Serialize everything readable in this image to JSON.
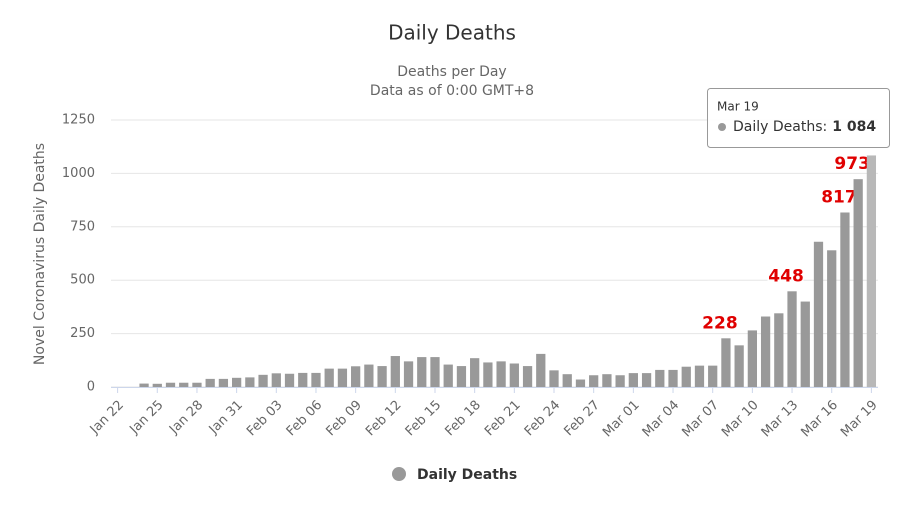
{
  "chart_data": {
    "type": "bar",
    "title": "Daily Deaths",
    "subtitle": [
      "Deaths per Day",
      "Data as of 0:00 GMT+8"
    ],
    "y_label": "Novel Coronavirus Daily Deaths",
    "categories": [
      "Jan 22",
      null,
      null,
      "Jan 25",
      null,
      null,
      "Jan 28",
      null,
      null,
      "Jan 31",
      null,
      null,
      "Feb 03",
      null,
      null,
      "Feb 06",
      null,
      null,
      "Feb 09",
      null,
      null,
      "Feb 12",
      null,
      null,
      "Feb 15",
      null,
      null,
      "Feb 18",
      null,
      null,
      "Feb 21",
      null,
      null,
      "Feb 24",
      null,
      null,
      "Feb 27",
      null,
      null,
      "Mar 01",
      null,
      null,
      "Mar 04",
      null,
      null,
      "Mar 07",
      null,
      null,
      "Mar 10",
      null,
      null,
      "Mar 13",
      null,
      null,
      "Mar 16",
      null,
      null,
      "Mar 19"
    ],
    "series": [
      {
        "name": "Daily Deaths",
        "color": "#999999",
        "hover_color": "#b8b8b8",
        "values": [
          0,
          0,
          16,
          15,
          20,
          20,
          20,
          38,
          38,
          43,
          45,
          57,
          64,
          62,
          66,
          66,
          86,
          86,
          97,
          105,
          98,
          145,
          120,
          140,
          140,
          105,
          98,
          135,
          115,
          120,
          110,
          98,
          155,
          78,
          60,
          35,
          55,
          60,
          55,
          65,
          65,
          80,
          80,
          95,
          100,
          100,
          228,
          195,
          265,
          330,
          345,
          448,
          400,
          680,
          640,
          817,
          973,
          1084
        ],
        "value_labels": [
          null,
          null,
          null,
          null,
          null,
          null,
          null,
          null,
          null,
          null,
          null,
          null,
          null,
          null,
          null,
          null,
          null,
          null,
          null,
          null,
          null,
          null,
          null,
          null,
          null,
          null,
          null,
          null,
          null,
          null,
          null,
          null,
          null,
          null,
          null,
          null,
          null,
          null,
          null,
          null,
          null,
          null,
          null,
          null,
          null,
          null,
          "228",
          null,
          null,
          null,
          null,
          "448",
          null,
          null,
          null,
          "817",
          "973",
          null
        ]
      }
    ],
    "ylim": [
      0,
      1250
    ],
    "yticks": [
      0,
      250,
      500,
      750,
      1000,
      1250
    ],
    "grid": true,
    "tooltip": {
      "title": "Mar 19",
      "series": "Daily Deaths:",
      "value": "1 084"
    }
  }
}
